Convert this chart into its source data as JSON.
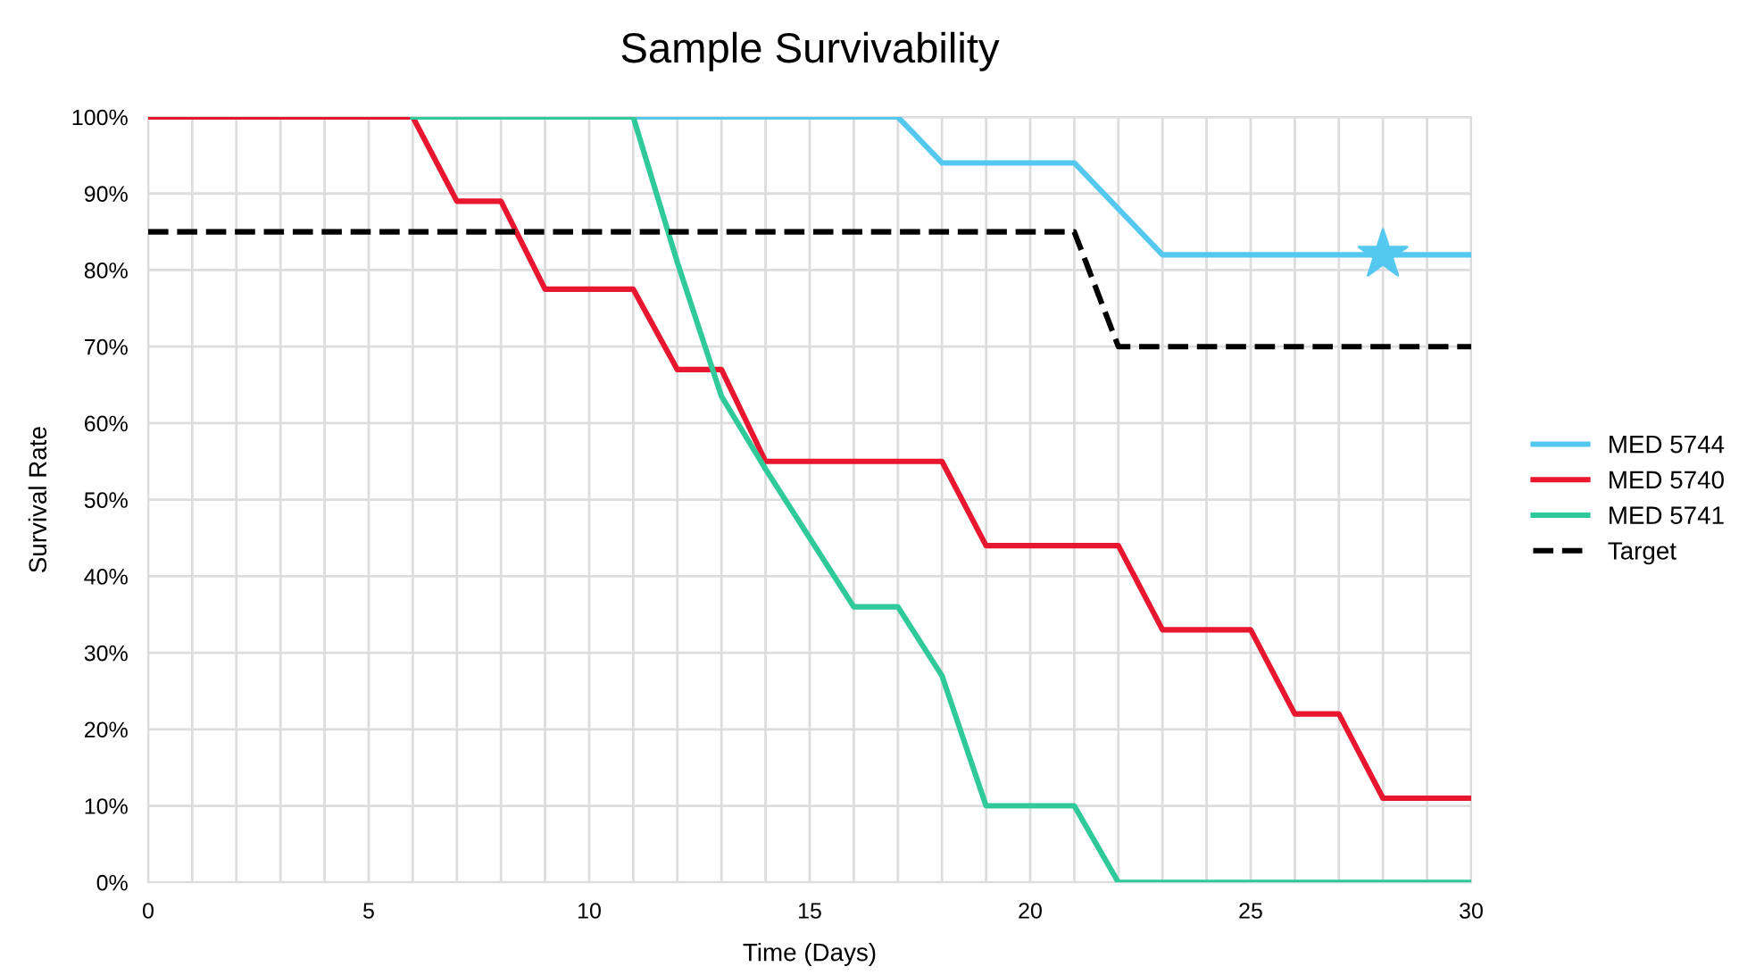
{
  "chart_data": {
    "type": "line",
    "title": "Sample Survivability",
    "xlabel": "Time (Days)",
    "ylabel": "Survival Rate",
    "x": [
      0,
      1,
      2,
      3,
      4,
      5,
      6,
      7,
      8,
      9,
      10,
      11,
      12,
      13,
      14,
      15,
      16,
      17,
      18,
      19,
      20,
      21,
      22,
      23,
      24,
      25,
      26,
      27,
      28,
      29,
      30
    ],
    "series": [
      {
        "name": "MED 5744",
        "color": "#55c8f0",
        "values": [
          null,
          null,
          null,
          null,
          null,
          null,
          null,
          null,
          null,
          null,
          null,
          100,
          100,
          100,
          100,
          100,
          100,
          100,
          94,
          94,
          94,
          94,
          88,
          82,
          82,
          82,
          82,
          82,
          82,
          82,
          82
        ]
      },
      {
        "name": "MED 5740",
        "color": "#e8162e",
        "values": [
          100,
          100,
          100,
          100,
          100,
          100,
          100,
          89,
          89,
          77.5,
          77.5,
          77.5,
          67,
          67,
          55,
          55,
          55,
          55,
          55,
          44,
          44,
          44,
          44,
          33,
          33,
          33,
          22,
          22,
          11,
          11,
          11
        ]
      },
      {
        "name": "MED 5741",
        "color": "#30c99a",
        "values": [
          null,
          null,
          null,
          null,
          null,
          null,
          100,
          100,
          100,
          100,
          100,
          100,
          81,
          63.5,
          54,
          45,
          36,
          36,
          27,
          10,
          10,
          10,
          0,
          0,
          0,
          0,
          0,
          0,
          0,
          0,
          0
        ]
      },
      {
        "name": "Target",
        "color": "#000000",
        "line_style": "dashed",
        "values": [
          85,
          85,
          85,
          85,
          85,
          85,
          85,
          85,
          85,
          85,
          85,
          85,
          85,
          85,
          85,
          85,
          85,
          85,
          85,
          85,
          85,
          85,
          70,
          70,
          70,
          70,
          70,
          70,
          70,
          70,
          70
        ]
      },
      {
        "type": "scatter",
        "color": "#55c8f0",
        "marker": "star",
        "x": [
          28
        ],
        "values": [
          82
        ]
      }
    ],
    "xlim": [
      0,
      30
    ],
    "xticks": [
      0,
      {
        "value": 1,
        "label": null
      },
      {
        "value": 2,
        "label": null
      },
      {
        "value": 3,
        "label": null
      },
      {
        "value": 4,
        "label": null
      },
      5,
      {
        "value": 6,
        "label": null
      },
      {
        "value": 7,
        "label": null
      },
      {
        "value": 8,
        "label": null
      },
      {
        "value": 9,
        "label": null
      },
      10,
      {
        "value": 11,
        "label": null
      },
      {
        "value": 12,
        "label": null
      },
      {
        "value": 13,
        "label": null
      },
      {
        "value": 14,
        "label": null
      },
      15,
      {
        "value": 16,
        "label": null
      },
      {
        "value": 17,
        "label": null
      },
      {
        "value": 18,
        "label": null
      },
      {
        "value": 19,
        "label": null
      },
      20,
      {
        "value": 21,
        "label": null
      },
      {
        "value": 22,
        "label": null
      },
      {
        "value": 23,
        "label": null
      },
      {
        "value": 24,
        "label": null
      },
      25,
      {
        "value": 26,
        "label": null
      },
      {
        "value": 27,
        "label": null
      },
      {
        "value": 28,
        "label": null
      },
      {
        "value": 29,
        "label": null
      },
      30
    ],
    "ylim": [
      0,
      100
    ],
    "yticks": [
      {
        "value": 0,
        "label": "0%"
      },
      {
        "value": 10,
        "label": "10%"
      },
      {
        "value": 20,
        "label": "20%"
      },
      {
        "value": 30,
        "label": "30%"
      },
      {
        "value": 40,
        "label": "40%"
      },
      {
        "value": 50,
        "label": "50%"
      },
      {
        "value": 60,
        "label": "60%"
      },
      {
        "value": 70,
        "label": "70%"
      },
      {
        "value": 80,
        "label": "80%"
      },
      {
        "value": 90,
        "label": "90%"
      },
      {
        "value": 100,
        "label": "100%"
      }
    ],
    "grid": true,
    "legend": "right",
    "marker": "none",
    "line_style": "solid"
  }
}
